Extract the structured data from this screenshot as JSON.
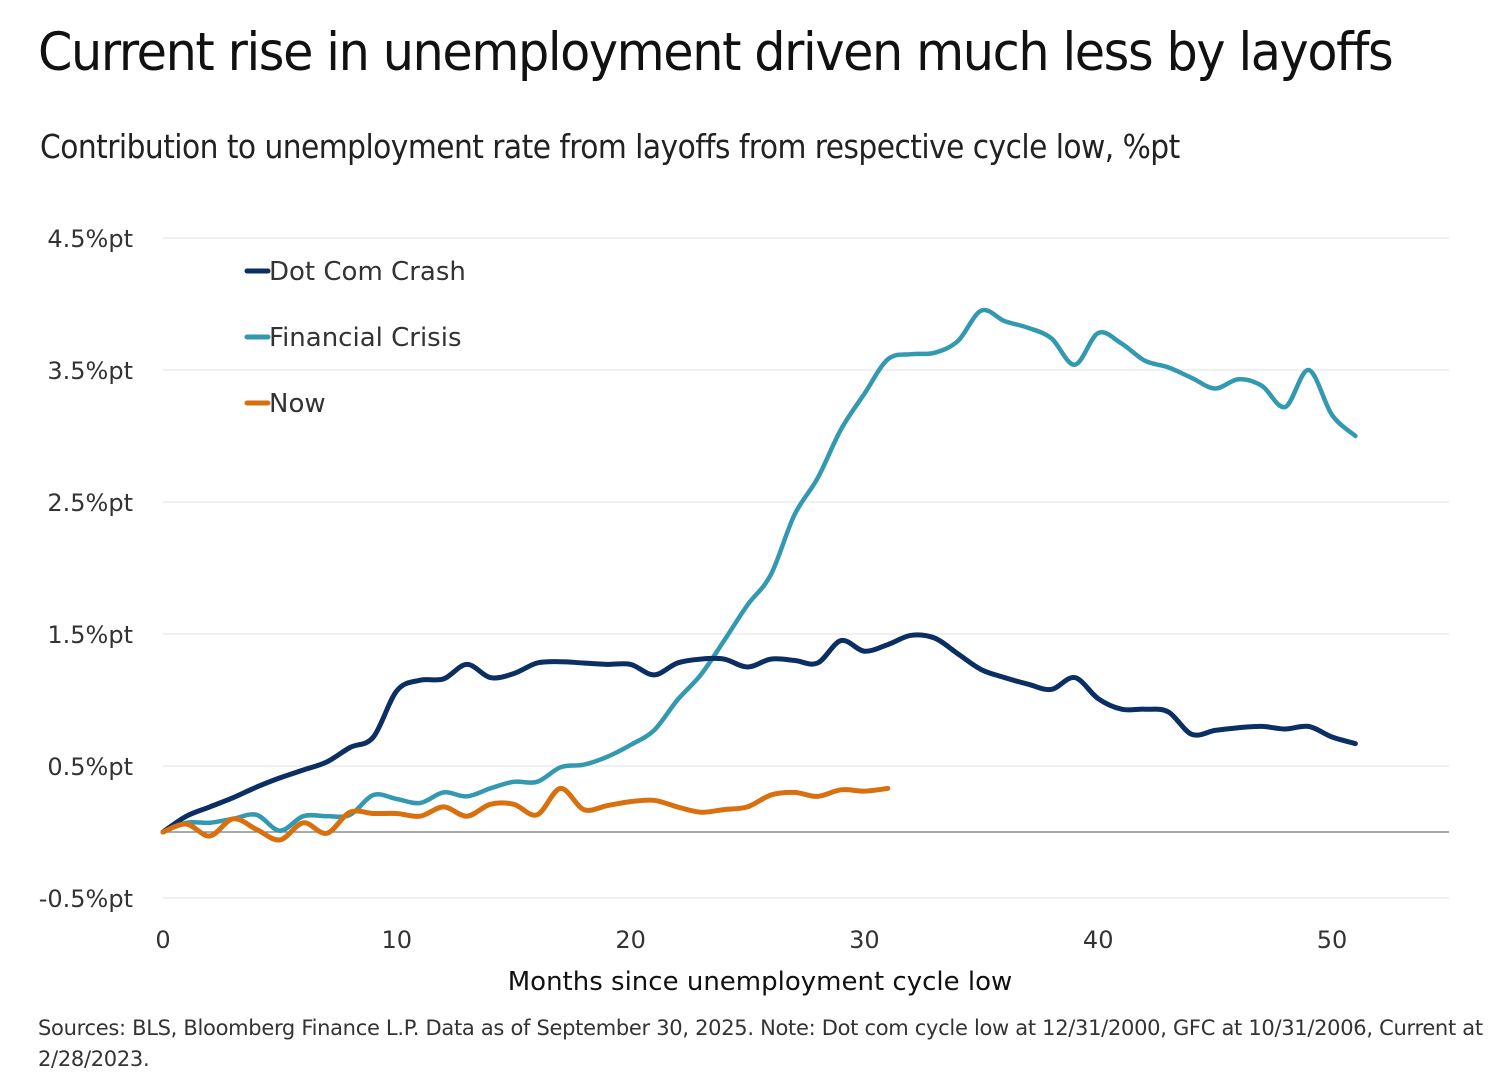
{
  "title": "Current rise in unemployment driven much less by layoffs",
  "subtitle": "Contribution to unemployment rate from layoffs from respective cycle low, %pt",
  "source": "Sources: BLS, Bloomberg Finance L.P. Data as of September 30, 2025. Note: Dot com cycle low at 12/31/2000, GFC at 10/31/2006, Current at 2/28/2023.",
  "chart_data": {
    "type": "line",
    "title": "Current rise in unemployment driven much less by layoffs",
    "subtitle": "Contribution to unemployment rate from layoffs from respective cycle low, %pt",
    "xlabel": "Months since unemployment cycle low",
    "ylabel": "",
    "xlim": [
      0,
      55
    ],
    "ylim": [
      -0.5,
      4.5
    ],
    "x_ticks": [
      0,
      10,
      20,
      30,
      40,
      50
    ],
    "x_tick_labels": [
      "0",
      "10",
      "20",
      "30",
      "40",
      "50"
    ],
    "y_ticks": [
      -0.5,
      0.5,
      1.5,
      2.5,
      3.5,
      4.5
    ],
    "y_tick_labels": [
      "-0.5%pt",
      "0.5%pt",
      "1.5%pt",
      "2.5%pt",
      "3.5%pt",
      "4.5%pt"
    ],
    "grid": "horizontal",
    "legend_position": "top-left",
    "series": [
      {
        "name": "Dot Com Crash",
        "color": "#0b2e63",
        "values": [
          0,
          0.12,
          0.19,
          0.26,
          0.34,
          0.41,
          0.47,
          0.53,
          0.64,
          0.72,
          1.07,
          1.15,
          1.16,
          1.27,
          1.17,
          1.2,
          1.28,
          1.29,
          1.28,
          1.27,
          1.27,
          1.19,
          1.28,
          1.31,
          1.31,
          1.25,
          1.31,
          1.3,
          1.28,
          1.45,
          1.37,
          1.42,
          1.49,
          1.47,
          1.35,
          1.23,
          1.17,
          1.12,
          1.08,
          1.17,
          1.01,
          0.93,
          0.93,
          0.91,
          0.74,
          0.77,
          0.79,
          0.8,
          0.78,
          0.8,
          0.72,
          0.67
        ]
      },
      {
        "name": "Financial Crisis",
        "color": "#3399b0",
        "values": [
          0,
          0.07,
          0.07,
          0.1,
          0.13,
          0.01,
          0.12,
          0.12,
          0.13,
          0.28,
          0.25,
          0.22,
          0.3,
          0.27,
          0.33,
          0.38,
          0.38,
          0.49,
          0.51,
          0.57,
          0.66,
          0.77,
          1.0,
          1.19,
          1.45,
          1.72,
          1.95,
          2.4,
          2.68,
          3.05,
          3.32,
          3.58,
          3.62,
          3.63,
          3.72,
          3.95,
          3.87,
          3.82,
          3.74,
          3.54,
          3.78,
          3.7,
          3.57,
          3.52,
          3.44,
          3.36,
          3.43,
          3.38,
          3.22,
          3.5,
          3.16,
          3.0
        ]
      },
      {
        "name": "Now",
        "color": "#d9700f",
        "values": [
          0,
          0.06,
          -0.03,
          0.1,
          0.02,
          -0.06,
          0.07,
          -0.01,
          0.15,
          0.14,
          0.14,
          0.12,
          0.19,
          0.12,
          0.21,
          0.21,
          0.13,
          0.33,
          0.17,
          0.2,
          0.23,
          0.24,
          0.19,
          0.15,
          0.17,
          0.19,
          0.28,
          0.3,
          0.27,
          0.32,
          0.31,
          0.33
        ]
      }
    ]
  }
}
